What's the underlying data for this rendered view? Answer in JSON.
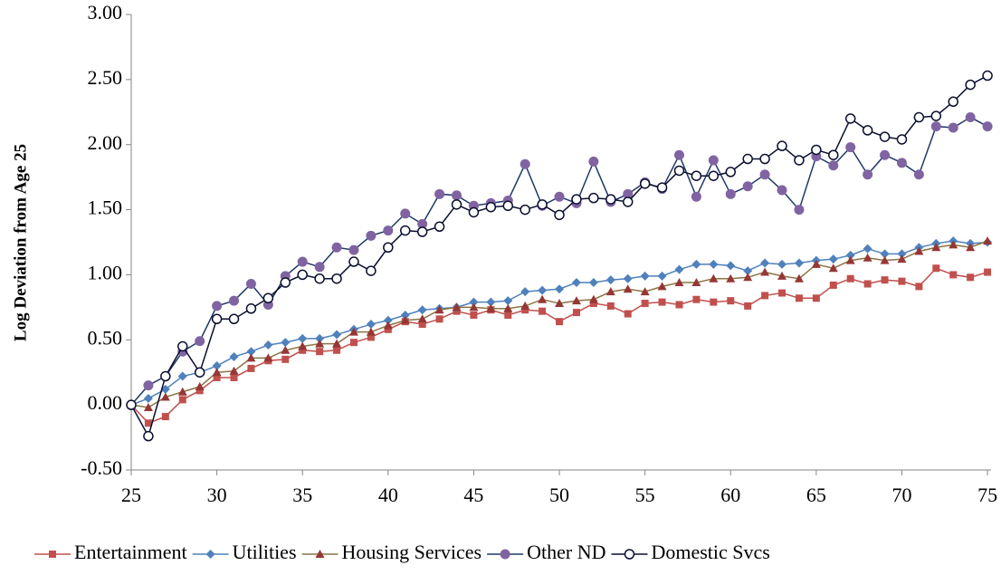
{
  "chart_data": {
    "type": "line",
    "y_label": "Log Deviation from Age 25",
    "x": [
      25,
      26,
      27,
      28,
      29,
      30,
      31,
      32,
      33,
      34,
      35,
      36,
      37,
      38,
      39,
      40,
      41,
      42,
      43,
      44,
      45,
      46,
      47,
      48,
      49,
      50,
      51,
      52,
      53,
      54,
      55,
      56,
      57,
      58,
      59,
      60,
      61,
      62,
      63,
      64,
      65,
      66,
      67,
      68,
      69,
      70,
      71,
      72,
      73,
      74,
      75
    ],
    "xlim": [
      25,
      76
    ],
    "xticks": [
      25,
      30,
      35,
      40,
      45,
      50,
      55,
      60,
      65,
      70,
      75
    ],
    "ylim": [
      -0.5,
      3
    ],
    "yticks": [
      {
        "value": -0.5,
        "label": "-0.50"
      },
      {
        "value": 0,
        "label": "0.00"
      },
      {
        "value": 0.5,
        "label": "0.50"
      },
      {
        "value": 1,
        "label": "1.00"
      },
      {
        "value": 1.5,
        "label": "1.50"
      },
      {
        "value": 2,
        "label": "2.00"
      },
      {
        "value": 2.5,
        "label": "2.50"
      },
      {
        "value": 3,
        "label": "3.00"
      }
    ],
    "grid": false,
    "legend": "bottom",
    "series": [
      {
        "name": "Entertainment",
        "color": "#c0504d",
        "marker_color": "#c0504d",
        "marker": "square",
        "values": [
          0,
          -0.14,
          -0.09,
          0.04,
          0.11,
          0.21,
          0.21,
          0.28,
          0.34,
          0.35,
          0.42,
          0.41,
          0.42,
          0.48,
          0.52,
          0.58,
          0.64,
          0.62,
          0.66,
          0.72,
          0.69,
          0.73,
          0.69,
          0.73,
          0.72,
          0.64,
          0.71,
          0.78,
          0.76,
          0.7,
          0.78,
          0.79,
          0.77,
          0.81,
          0.79,
          0.8,
          0.76,
          0.84,
          0.86,
          0.82,
          0.82,
          0.92,
          0.97,
          0.93,
          0.96,
          0.95,
          0.91,
          1.05,
          1.0,
          0.98,
          1.02
        ]
      },
      {
        "name": "Utilities",
        "color": "#4f81bd",
        "marker_color": "#4f81bd",
        "marker": "diamond",
        "values": [
          0,
          0.05,
          0.12,
          0.22,
          0.25,
          0.3,
          0.37,
          0.41,
          0.46,
          0.48,
          0.51,
          0.51,
          0.54,
          0.58,
          0.62,
          0.65,
          0.69,
          0.73,
          0.74,
          0.75,
          0.79,
          0.79,
          0.8,
          0.87,
          0.88,
          0.89,
          0.94,
          0.94,
          0.96,
          0.97,
          0.99,
          0.99,
          1.04,
          1.08,
          1.08,
          1.07,
          1.03,
          1.09,
          1.08,
          1.09,
          1.11,
          1.12,
          1.15,
          1.2,
          1.16,
          1.16,
          1.21,
          1.24,
          1.26,
          1.24,
          1.25
        ]
      },
      {
        "name": "Housing Services",
        "color": "#8c7444",
        "marker_color": "#953735",
        "marker": "triangle",
        "values": [
          0,
          -0.02,
          0.06,
          0.1,
          0.14,
          0.25,
          0.26,
          0.36,
          0.36,
          0.42,
          0.45,
          0.47,
          0.47,
          0.56,
          0.56,
          0.61,
          0.65,
          0.66,
          0.73,
          0.75,
          0.75,
          0.74,
          0.74,
          0.76,
          0.81,
          0.78,
          0.8,
          0.81,
          0.87,
          0.89,
          0.87,
          0.91,
          0.94,
          0.94,
          0.97,
          0.97,
          0.98,
          1.02,
          0.99,
          0.97,
          1.08,
          1.05,
          1.11,
          1.13,
          1.11,
          1.12,
          1.18,
          1.21,
          1.23,
          1.21,
          1.26
        ]
      },
      {
        "name": "Other ND",
        "color": "#1f3864",
        "marker_color": "#8064a2",
        "marker": "circle",
        "values": [
          0,
          0.15,
          0.22,
          0.41,
          0.49,
          0.76,
          0.8,
          0.93,
          0.77,
          0.99,
          1.1,
          1.06,
          1.21,
          1.19,
          1.3,
          1.34,
          1.47,
          1.39,
          1.62,
          1.61,
          1.53,
          1.55,
          1.57,
          1.85,
          1.53,
          1.6,
          1.55,
          1.87,
          1.56,
          1.62,
          1.71,
          1.66,
          1.92,
          1.6,
          1.88,
          1.62,
          1.68,
          1.77,
          1.65,
          1.5,
          1.91,
          1.84,
          1.98,
          1.77,
          1.92,
          1.86,
          1.77,
          2.14,
          2.13,
          2.21,
          2.14
        ]
      },
      {
        "name": "Domestic Svcs",
        "color": "#0a0f2e",
        "marker_color": "#0a0f2e",
        "marker": "circle-open",
        "values": [
          0,
          -0.24,
          0.22,
          0.45,
          0.25,
          0.66,
          0.66,
          0.74,
          0.82,
          0.94,
          1.0,
          0.97,
          0.97,
          1.1,
          1.03,
          1.21,
          1.34,
          1.33,
          1.37,
          1.54,
          1.48,
          1.52,
          1.53,
          1.5,
          1.54,
          1.46,
          1.58,
          1.59,
          1.58,
          1.56,
          1.7,
          1.67,
          1.8,
          1.76,
          1.76,
          1.79,
          1.89,
          1.89,
          1.99,
          1.88,
          1.96,
          1.92,
          2.2,
          2.11,
          2.06,
          2.04,
          2.21,
          2.22,
          2.33,
          2.46,
          2.53
        ]
      }
    ]
  }
}
